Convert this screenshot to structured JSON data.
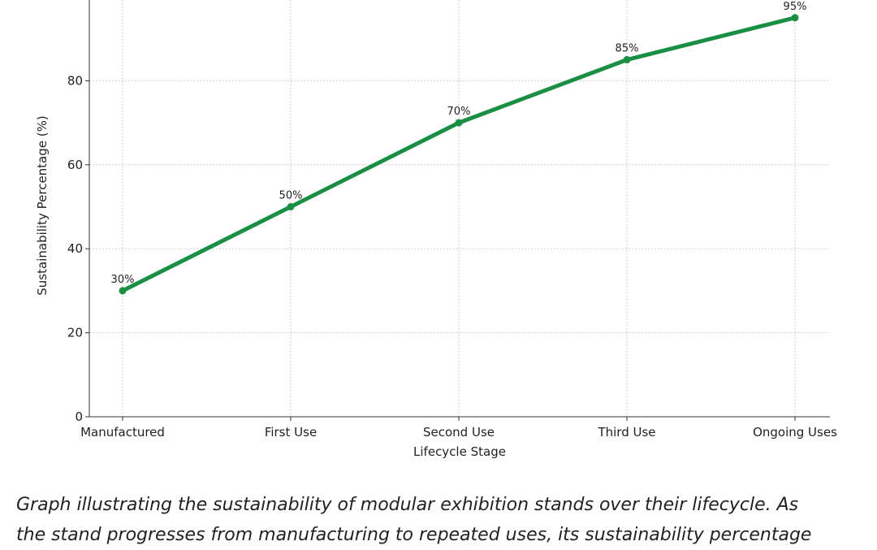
{
  "chart_data": {
    "type": "line",
    "categories": [
      "Manufactured",
      "First Use",
      "Second Use",
      "Third Use",
      "Ongoing Uses"
    ],
    "values": [
      30,
      50,
      70,
      85,
      95
    ],
    "data_labels": [
      "30%",
      "50%",
      "70%",
      "85%",
      "95%"
    ],
    "xlabel": "Lifecycle Stage",
    "ylabel": "Sustainability Percentage (%)",
    "ylim": [
      0,
      100
    ],
    "yticks": [
      0,
      20,
      40,
      60,
      80
    ],
    "grid": true,
    "line_color": "#1a8f43"
  },
  "caption": {
    "line1": "Graph illustrating the sustainability of modular exhibition stands over their lifecycle. As",
    "line2": "the stand progresses from manufacturing to repeated uses, its sustainability percentage"
  }
}
